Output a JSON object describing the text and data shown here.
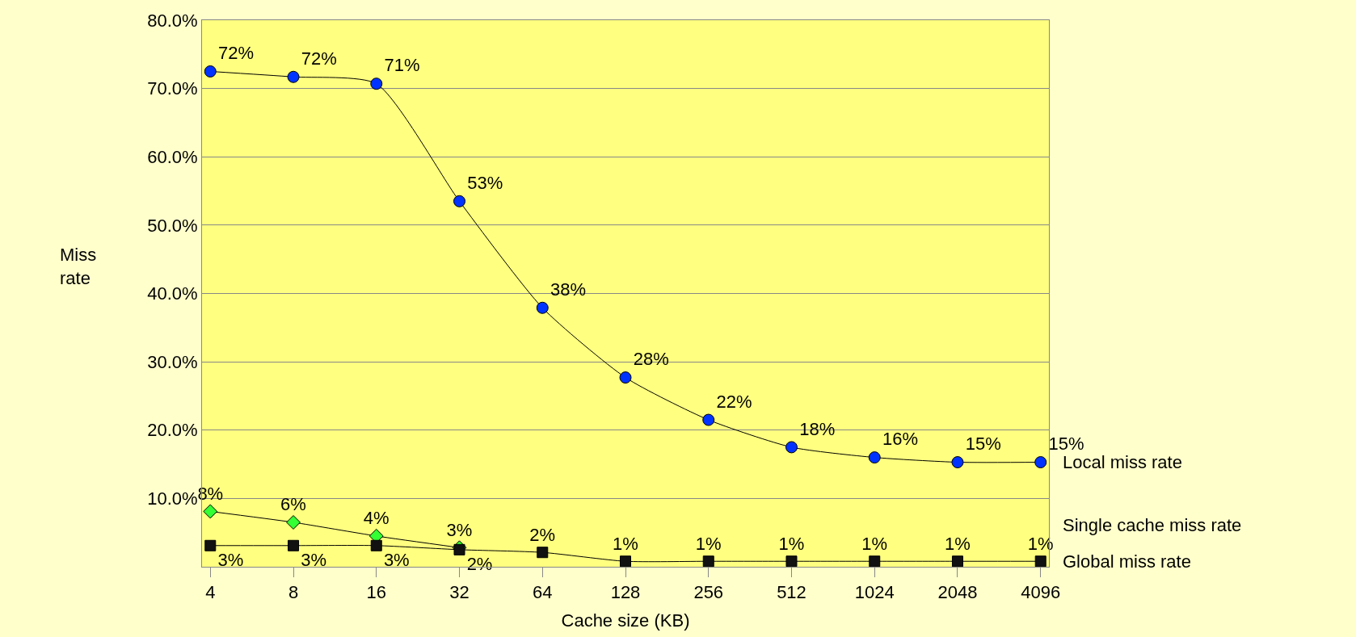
{
  "chart_data": {
    "type": "line",
    "xlabel": "Cache size (KB)",
    "ylabel": "Miss rate",
    "categories": [
      "4",
      "8",
      "16",
      "32",
      "64",
      "128",
      "256",
      "512",
      "1024",
      "2048",
      "4096"
    ],
    "ylim": [
      0,
      80
    ],
    "yticks": [
      {
        "value": 10,
        "label": "10.0%"
      },
      {
        "value": 20,
        "label": "20.0%"
      },
      {
        "value": 30,
        "label": "30.0%"
      },
      {
        "value": 40,
        "label": "40.0%"
      },
      {
        "value": 50,
        "label": "50.0%"
      },
      {
        "value": 60,
        "label": "60.0%"
      },
      {
        "value": 70,
        "label": "70.0%"
      },
      {
        "value": 80,
        "label": "80.0%"
      }
    ],
    "grid": "y",
    "legend": false,
    "series": [
      {
        "name": "Local miss rate",
        "color": "#0033ff",
        "marker": "circle",
        "values": [
          72.5,
          71.7,
          70.7,
          53.5,
          37.9,
          27.7,
          21.5,
          17.5,
          16.0,
          15.3,
          15.3
        ],
        "value_labels": [
          "72%",
          "72%",
          "71%",
          "53%",
          "38%",
          "28%",
          "22%",
          "18%",
          "16%",
          "15%",
          "15%"
        ]
      },
      {
        "name": "Single cache miss rate",
        "color": "#33ff33",
        "marker": "diamond",
        "values": [
          8.1,
          6.5,
          4.5,
          2.8,
          null,
          null,
          null,
          null,
          null,
          null,
          null
        ],
        "value_labels": [
          "8%",
          "6%",
          "4%",
          "3%",
          null,
          null,
          null,
          null,
          null,
          null,
          null
        ]
      },
      {
        "name": "Global miss rate",
        "color": "#111111",
        "marker": "square",
        "values": [
          3.1,
          3.1,
          3.1,
          2.5,
          2.1,
          0.8,
          0.8,
          0.8,
          0.8,
          0.8,
          0.8
        ],
        "value_labels": [
          "3%",
          "3%",
          "3%",
          "2%",
          "2%",
          "1%",
          "1%",
          "1%",
          "1%",
          "1%",
          "1%"
        ]
      }
    ]
  }
}
